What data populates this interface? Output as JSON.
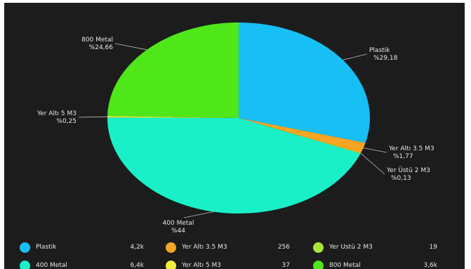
{
  "chart_data": {
    "type": "pie",
    "slices": [
      {
        "label": "Plastik",
        "pct_label": "%29,18",
        "value": 29.18,
        "color": "#17bff5"
      },
      {
        "label": "Yer Altı 3.5 M3",
        "pct_label": "%1,77",
        "value": 1.77,
        "color": "#f6a623"
      },
      {
        "label": "Yer Üstü 2 M3",
        "pct_label": "%0,13",
        "value": 0.13,
        "color": "#a8e63c"
      },
      {
        "label": "400 Metal",
        "pct_label": "%44",
        "value": 44.0,
        "color": "#19f0c8"
      },
      {
        "label": "Yer Altı 5 M3",
        "pct_label": "%0,25",
        "value": 0.25,
        "color": "#f2ef3a"
      },
      {
        "label": "800 Metal",
        "pct_label": "%24,66",
        "value": 24.66,
        "color": "#4fe61a"
      }
    ],
    "legend": {
      "position": "bottom",
      "items": [
        {
          "label": "Plastik",
          "value": "4,2k",
          "color": "#17bff5"
        },
        {
          "label": "Yer Altı 3.5 M3",
          "value": "256",
          "color": "#f6a623"
        },
        {
          "label": "Yer Üstü 2 M3",
          "value": "19",
          "color": "#a8e63c"
        },
        {
          "label": "400 Metal",
          "value": "6,4k",
          "color": "#19f0c8"
        },
        {
          "label": "Yer Altı 5 M3",
          "value": "37",
          "color": "#f2ef3a"
        },
        {
          "label": "800 Metal",
          "value": "3,6k",
          "color": "#4fe61a"
        }
      ]
    }
  },
  "colors": {
    "background": "#1c1c1c",
    "text": "#e6e6e6",
    "leader": "#bdbdbd"
  }
}
